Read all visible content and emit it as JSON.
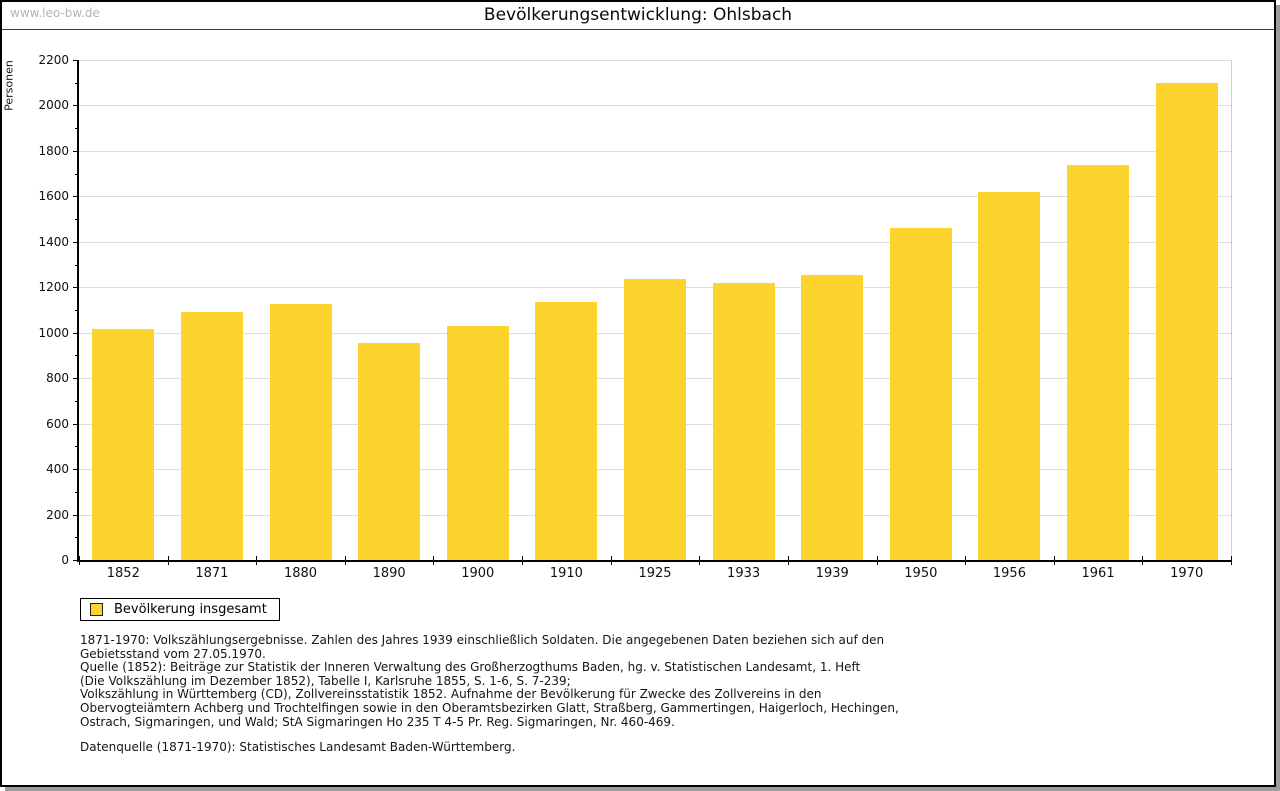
{
  "window": {
    "watermark": "www.leo-bw.de",
    "title": "Bevölkerungsentwicklung: Ohlsbach"
  },
  "chart_data": {
    "type": "bar",
    "title": "Bevölkerungsentwicklung: Ohlsbach",
    "categories": [
      "1852",
      "1871",
      "1880",
      "1890",
      "1900",
      "1910",
      "1925",
      "1933",
      "1939",
      "1950",
      "1956",
      "1961",
      "1970"
    ],
    "values": [
      1015,
      1090,
      1125,
      955,
      1030,
      1135,
      1235,
      1220,
      1255,
      1460,
      1620,
      1740,
      2100
    ],
    "xlabel": "",
    "ylabel": "Personen",
    "ylim": [
      0,
      2200
    ],
    "yticks": [
      0,
      200,
      400,
      600,
      800,
      1000,
      1200,
      1400,
      1600,
      1800,
      2000,
      2200
    ],
    "minor_tick_step": 100,
    "grid": true,
    "bar_color": "#fcd42d",
    "gridline_color": "#dcdcdc",
    "legend_position": "bottom-left"
  },
  "legend": {
    "label": "Bevölkerung insgesamt",
    "swatch_color": "#fcd42d"
  },
  "footnotes": {
    "lines": [
      "1871-1970: Volkszählungsergebnisse. Zahlen des Jahres 1939 einschließlich Soldaten. Die angegebenen Daten beziehen sich auf den",
      "Gebietsstand vom 27.05.1970.",
      "Quelle (1852): Beiträge zur Statistik der Inneren Verwaltung des Großherzogthums Baden, hg. v. Statistischen Landesamt, 1. Heft",
      "(Die Volkszählung im Dezember 1852), Tabelle I, Karlsruhe 1855, S. 1-6, S. 7-239;",
      "Volkszählung in Württemberg (CD), Zollvereinsstatistik 1852. Aufnahme der Bevölkerung für Zwecke des Zollvereins in den",
      "Obervogteiämtern Achberg und Trochtelfingen sowie in den Oberamtsbezirken Glatt, Straßberg, Gammertingen, Haigerloch, Hechingen,",
      "Ostrach, Sigmaringen, und Wald; StA Sigmaringen Ho 235 T 4-5 Pr. Reg. Sigmaringen, Nr. 460-469."
    ],
    "datasource": "Datenquelle (1871-1970): Statistisches Landesamt Baden-Württemberg."
  }
}
